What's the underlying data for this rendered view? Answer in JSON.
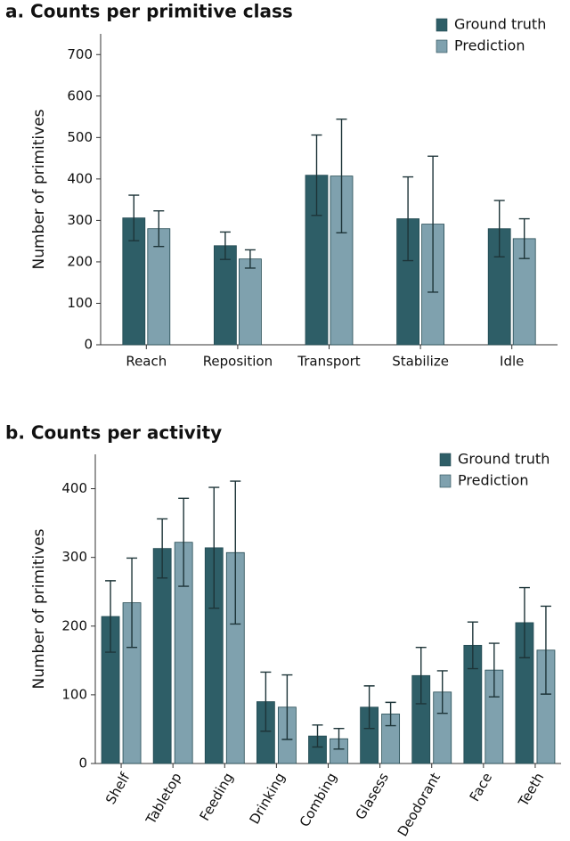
{
  "chart_data": [
    {
      "type": "bar",
      "title": "a.  Counts per primitive class",
      "ylabel": "Number of primitives",
      "categories": [
        "Reach",
        "Reposition",
        "Transport",
        "Stabilize",
        "Idle"
      ],
      "series": [
        {
          "name": "Ground truth",
          "color": "#2e5e67",
          "values": [
            306,
            239,
            409,
            304,
            280
          ],
          "errors": [
            55,
            33,
            97,
            101,
            68
          ]
        },
        {
          "name": "Prediction",
          "color": "#7fa1ae",
          "values": [
            280,
            207,
            407,
            291,
            256
          ],
          "errors": [
            43,
            22,
            137,
            164,
            48
          ]
        }
      ],
      "ylim": [
        0,
        750
      ],
      "yticks": [
        0,
        100,
        200,
        300,
        400,
        500,
        600,
        700
      ],
      "legend": "top-right"
    },
    {
      "type": "bar",
      "title": "b.  Counts per activity",
      "ylabel": "Number of primitives",
      "categories": [
        "Shelf",
        "Tabletop",
        "Feeding",
        "Drinking",
        "Combing",
        "Glasess",
        "Deodorant",
        "Face",
        "Teeth"
      ],
      "series": [
        {
          "name": "Ground truth",
          "color": "#2e5e67",
          "values": [
            214,
            313,
            314,
            90,
            40,
            82,
            128,
            172,
            205
          ],
          "errors": [
            52,
            43,
            88,
            43,
            16,
            31,
            41,
            34,
            51
          ]
        },
        {
          "name": "Prediction",
          "color": "#7fa1ae",
          "values": [
            234,
            322,
            307,
            82,
            36,
            72,
            104,
            136,
            165
          ],
          "errors": [
            65,
            64,
            104,
            47,
            15,
            17,
            31,
            39,
            64
          ]
        }
      ],
      "ylim": [
        0,
        450
      ],
      "yticks": [
        0,
        100,
        200,
        300,
        400
      ],
      "legend": "top-right",
      "rotate_labels": true
    }
  ]
}
